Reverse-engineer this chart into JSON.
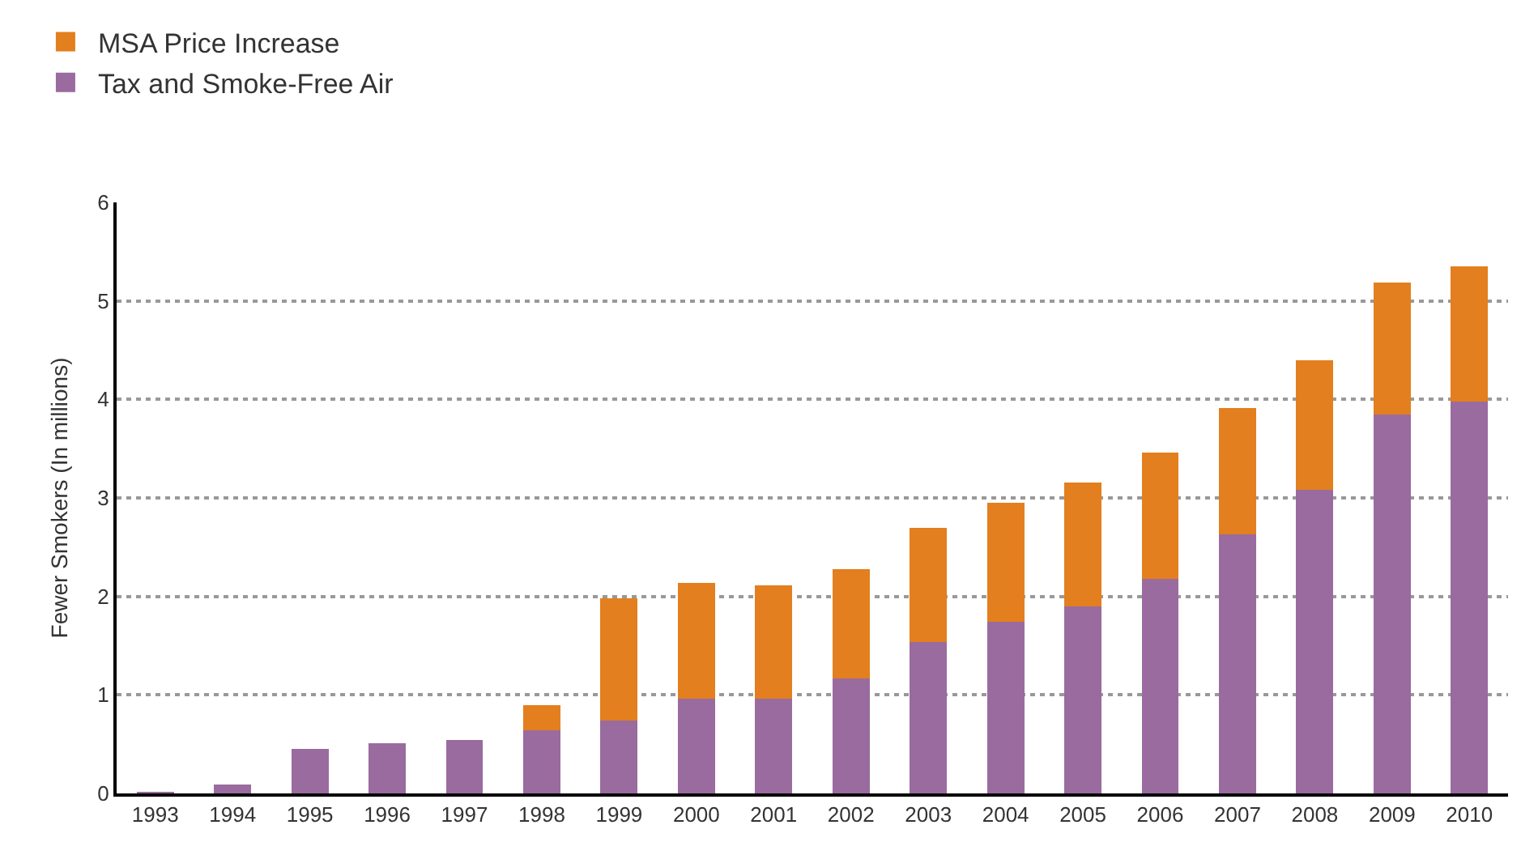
{
  "chart_data": {
    "type": "bar",
    "stacked": true,
    "ylabel": "Fewer Smokers (In millions)",
    "categories": [
      "1993",
      "1994",
      "1995",
      "1996",
      "1997",
      "1998",
      "1999",
      "2000",
      "2001",
      "2002",
      "2003",
      "2004",
      "2005",
      "2006",
      "2007",
      "2008",
      "2009",
      "2010"
    ],
    "series": [
      {
        "name": "Tax and Smoke-Free Air",
        "color": "#9a6b9e",
        "values": [
          0.01,
          0.09,
          0.45,
          0.51,
          0.54,
          0.64,
          0.74,
          0.96,
          0.96,
          1.17,
          1.54,
          1.74,
          1.9,
          2.18,
          2.63,
          3.08,
          3.85,
          3.98
        ]
      },
      {
        "name": "MSA Price Increase",
        "color": "#e37f1e",
        "values": [
          null,
          null,
          null,
          null,
          null,
          0.26,
          1.24,
          1.18,
          1.15,
          1.11,
          1.16,
          1.21,
          1.26,
          1.28,
          1.28,
          1.32,
          1.34,
          1.37
        ]
      }
    ],
    "ylim": [
      0,
      6
    ],
    "yticks": [
      0,
      1,
      2,
      3,
      4,
      5,
      6
    ],
    "grid": "y",
    "legend": "top left"
  }
}
